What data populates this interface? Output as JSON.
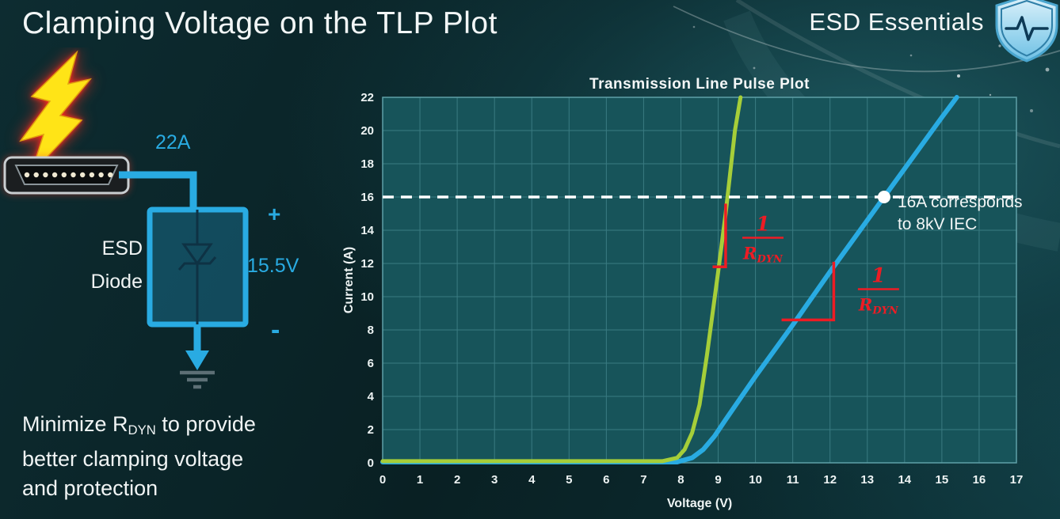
{
  "header": {
    "title": "Clamping Voltage on the TLP Plot",
    "brand": "ESD Essentials"
  },
  "diagram": {
    "surge_current_label": "22A",
    "device_label_line1": "ESD",
    "device_label_line2": "Diode",
    "polarity_plus": "+",
    "polarity_minus": "-",
    "clamp_voltage_label": "15.5V",
    "accent_color": "#29abe2"
  },
  "footnote": {
    "line1_pre": "Minimize R",
    "line1_sub": "DYN",
    "line1_post": " to provide",
    "line2": "better clamping voltage",
    "line3": "and protection"
  },
  "chart_data": {
    "type": "line",
    "title": "Transmission Line Pulse Plot",
    "xlabel": "Voltage (V)",
    "ylabel": "Current (A)",
    "xlim": [
      0,
      17
    ],
    "ylim": [
      0,
      22
    ],
    "xticks": [
      0,
      1,
      2,
      3,
      4,
      5,
      6,
      7,
      8,
      9,
      10,
      11,
      12,
      13,
      14,
      15,
      16,
      17
    ],
    "yticks": [
      0,
      2,
      4,
      6,
      8,
      10,
      12,
      14,
      16,
      18,
      20,
      22
    ],
    "grid": true,
    "legend": "none",
    "plot_bg_color": "#17545a",
    "grid_color": "#3a7b82",
    "series": [
      {
        "id": "standard-rdyn",
        "color": "#29abe2",
        "width": 6,
        "points": [
          [
            0,
            0.05
          ],
          [
            7.9,
            0.05
          ],
          [
            8.3,
            0.3
          ],
          [
            8.6,
            0.8
          ],
          [
            8.9,
            1.6
          ],
          [
            9.2,
            2.6
          ],
          [
            9.6,
            3.9
          ],
          [
            10,
            5.2
          ],
          [
            11,
            8.3
          ],
          [
            12,
            11.5
          ],
          [
            13,
            14.6
          ],
          [
            13.45,
            16
          ],
          [
            14,
            17.7
          ],
          [
            15,
            20.8
          ],
          [
            15.4,
            22
          ]
        ]
      },
      {
        "id": "low-rdyn",
        "color": "#a6ce39",
        "width": 5,
        "points": [
          [
            0,
            0.1
          ],
          [
            7.5,
            0.1
          ],
          [
            7.9,
            0.3
          ],
          [
            8.1,
            0.8
          ],
          [
            8.3,
            1.8
          ],
          [
            8.5,
            3.5
          ],
          [
            8.7,
            6.5
          ],
          [
            9.0,
            11.5
          ],
          [
            9.2,
            15
          ],
          [
            9.45,
            20
          ],
          [
            9.6,
            22
          ]
        ]
      }
    ],
    "reference_line": {
      "y": 16,
      "style": "dashed",
      "color": "#ffffff"
    },
    "marker": {
      "x": 13.45,
      "y": 16,
      "label_line1": "16A corresponds",
      "label_line2": "to 8kV IEC"
    },
    "annotations": [
      {
        "id": "green-slope",
        "color": "#ed1c24",
        "numerator": "1",
        "den_main": "R",
        "den_sub": "DYN",
        "path": [
          [
            8.85,
            11.8
          ],
          [
            9.2,
            11.8
          ],
          [
            9.2,
            15.6
          ]
        ],
        "label_pos": [
          10.2,
          13.55
        ]
      },
      {
        "id": "blue-slope",
        "color": "#ed1c24",
        "numerator": "1",
        "den_main": "R",
        "den_sub": "DYN",
        "path": [
          [
            10.7,
            8.6
          ],
          [
            12.1,
            8.6
          ],
          [
            12.1,
            12.1
          ]
        ],
        "label_pos": [
          13.3,
          10.45
        ]
      }
    ]
  }
}
